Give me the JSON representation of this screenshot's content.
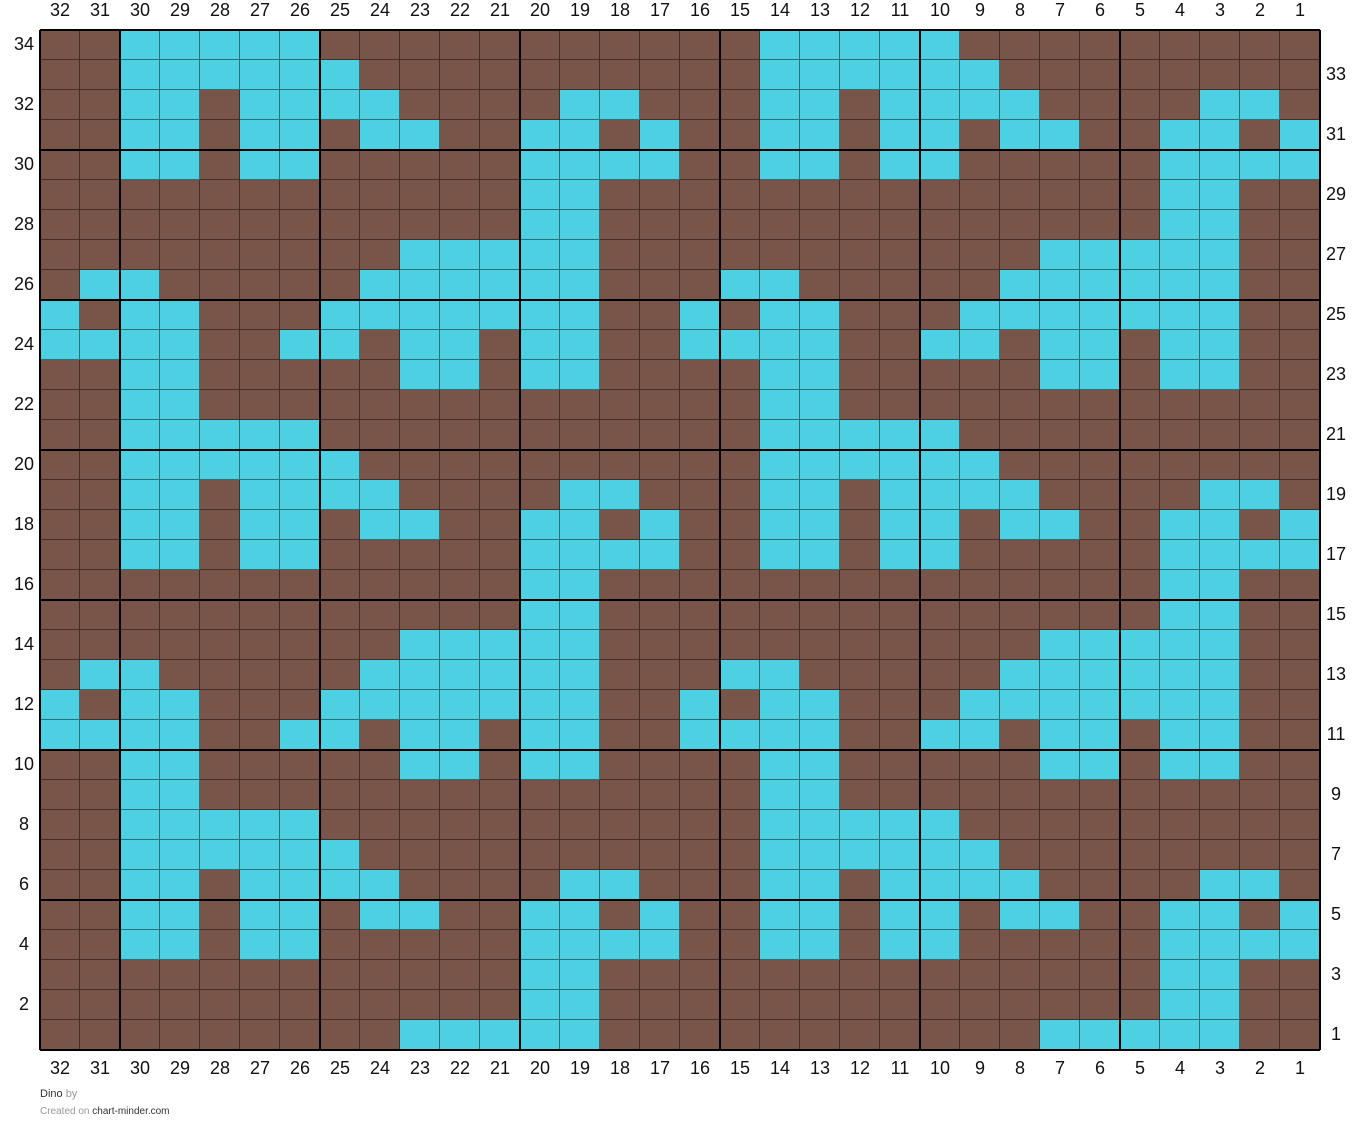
{
  "title": "Dino",
  "by_text": "by",
  "created_on_text": "Created on",
  "site": "chart-minder.com",
  "colors": {
    "B": "#785548",
    "C": "#4cd0e2",
    "grid_line": "#000000"
  },
  "columns": 32,
  "row_count": 34,
  "column_labels": [
    "32",
    "31",
    "30",
    "29",
    "28",
    "27",
    "26",
    "25",
    "24",
    "23",
    "22",
    "21",
    "20",
    "19",
    "18",
    "17",
    "16",
    "15",
    "14",
    "13",
    "12",
    "11",
    "10",
    "9",
    "8",
    "7",
    "6",
    "5",
    "4",
    "3",
    "2",
    "1"
  ],
  "rows_top_to_bottom": [
    {
      "row": "34",
      "cells": "BBCCCCCBBBBBBBBBBBCCCCCBBBBBBBBB"
    },
    {
      "row": "33",
      "cells": "BBCCCCCCBBBBBBBBBBCCCCCCBBBBBBBB"
    },
    {
      "row": "32",
      "cells": "BBCCBCCCCBBBBCCBBBCCBCCCCBBBBCCB"
    },
    {
      "row": "31",
      "cells": "BBCCBCCBCCBBCCBCBBCCBCCBCCBBCCBC"
    },
    {
      "row": "30",
      "cells": "BBCCBCCBBBBBCCCCBBCCBCCBBBBBCCCC"
    },
    {
      "row": "29",
      "cells": "BBBBBBBBBBBBCCBBBBBBBBBBBBBBCCBB"
    },
    {
      "row": "28",
      "cells": "BBBBBBBBBBBBCCBBBBBBBBBBBBBBCCBB"
    },
    {
      "row": "27",
      "cells": "BBBBBBBBBCCCCCBBBBBBBBBBBCCCCCBB"
    },
    {
      "row": "26",
      "cells": "BCCBBBBBCCCCCCBBBCCBBBBBCCCCCCBB"
    },
    {
      "row": "25",
      "cells": "CBCCBBBCCCCCCCBBCBCCBBBCCCCCCCBB"
    },
    {
      "row": "24",
      "cells": "CCCCBBCCBCCBCCBBCCCCBBCCBCCBCCBB"
    },
    {
      "row": "23",
      "cells": "BBCCBBBBBCCBCCBBBBCCBBBBBCCBCCBB"
    },
    {
      "row": "22",
      "cells": "BBCCBBBBBBBBBBBBBBCCBBBBBBBBBBBB"
    },
    {
      "row": "21",
      "cells": "BBCCCCCBBBBBBBBBBBCCCCCBBBBBBBBB"
    },
    {
      "row": "20",
      "cells": "BBCCCCCCBBBBBBBBBBCCCCCCBBBBBBBB"
    },
    {
      "row": "19",
      "cells": "BBCCBCCCCBBBBCCBBBCCBCCCCBBBBCCB"
    },
    {
      "row": "18",
      "cells": "BBCCBCCBCCBBCCBCBBCCBCCBCCBBCCBC"
    },
    {
      "row": "17",
      "cells": "BBCCBCCBBBBBCCCCBBCCBCCBBBBBCCCC"
    },
    {
      "row": "16",
      "cells": "BBBBBBBBBBBBCCBBBBBBBBBBBBBBCCBB"
    },
    {
      "row": "15",
      "cells": "BBBBBBBBBBBBCCBBBBBBBBBBBBBBCCBB"
    },
    {
      "row": "14",
      "cells": "BBBBBBBBBCCCCCBBBBBBBBBBBCCCCCBB"
    },
    {
      "row": "13",
      "cells": "BCCBBBBBCCCCCCBBBCCBBBBBCCCCCCBB"
    },
    {
      "row": "12",
      "cells": "CBCCBBBCCCCCCCBBCBCCBBBCCCCCCCBB"
    },
    {
      "row": "11",
      "cells": "CCCCBBCCBCCBCCBBCCCCBBCCBCCBCCBB"
    },
    {
      "row": "10",
      "cells": "BBCCBBBBBCCBCCBBBBCCBBBBBCCBCCBB"
    },
    {
      "row": "9",
      "cells": "BBCCBBBBBBBBBBBBBBCCBBBBBBBBBBBB"
    },
    {
      "row": "8",
      "cells": "BBCCCCCBBBBBBBBBBBCCCCCBBBBBBBBB"
    },
    {
      "row": "7",
      "cells": "BBCCCCCCBBBBBBBBBBCCCCCCBBBBBBBB"
    },
    {
      "row": "6",
      "cells": "BBCCBCCCCBBBBCCBBBCCBCCCCBBBBCCB"
    },
    {
      "row": "5",
      "cells": "BBCCBCCBCCBBCCBCBBCCBCCBCCBBCCBC"
    },
    {
      "row": "4",
      "cells": "BBCCBCCBBBBBCCCCBBCCBCCBBBBBCCCC"
    },
    {
      "row": "3",
      "cells": "BBBBBBBBBBBBCCBBBBBBBBBBBBBBCCBB"
    },
    {
      "row": "2",
      "cells": "BBBBBBBBBBBBCCBBBBBBBBBBBBBBCCBB"
    },
    {
      "row": "1",
      "cells": "BBBBBBBBBCCCCCBBBBBBBBBBBCCCCCBB"
    }
  ]
}
